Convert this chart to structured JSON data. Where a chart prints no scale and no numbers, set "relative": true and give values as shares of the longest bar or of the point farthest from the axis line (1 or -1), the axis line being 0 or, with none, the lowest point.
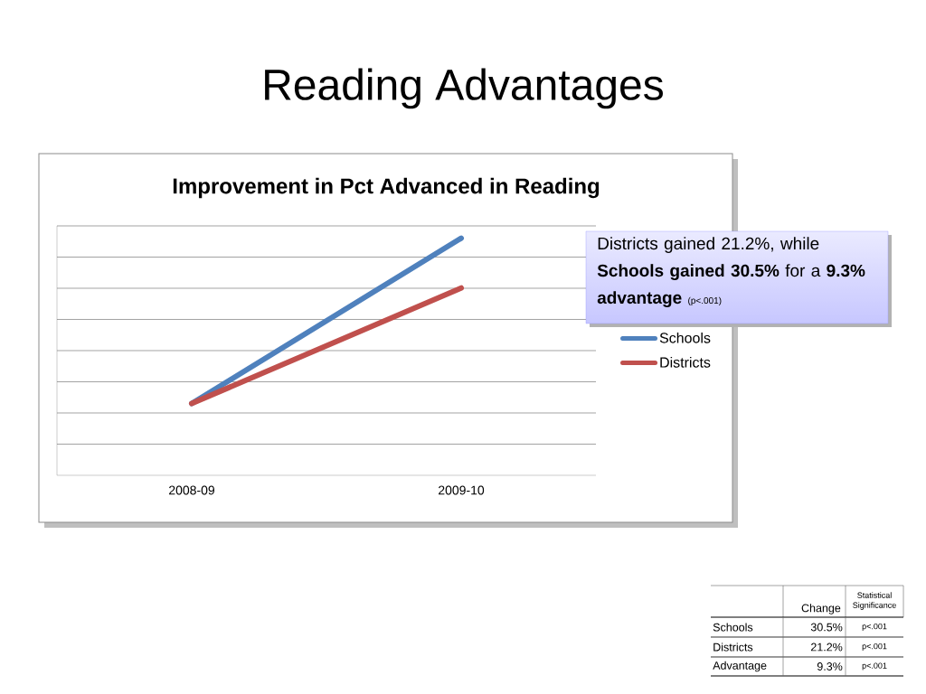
{
  "chart_data": {
    "type": "line",
    "title": "Reading Advantages",
    "subtitle": "Improvement in Pct Advanced in Reading",
    "categories": [
      "2008-09",
      "2009-10"
    ],
    "relative": true,
    "series": [
      {
        "name": "Schools",
        "color": "#4f81bd",
        "values": [
          0.303,
          1
        ]
      },
      {
        "name": "Districts",
        "color": "#c0504d",
        "values": [
          0.303,
          0.79
        ]
      }
    ],
    "grid": "y",
    "legend": "right",
    "marker": "none",
    "line_style": "solid",
    "annotations": [
      "Districts gained 21.2%, while **Schools gained 30.5%** for a **9.3% advantage**",
      "(p<.001)",
      "Change",
      "Statistical Significance",
      "Schools",
      "30.5%",
      "p<.001",
      "Districts",
      "21.2%",
      "p<.001",
      "Advantage",
      "9.3%",
      "p<.001"
    ]
  }
}
